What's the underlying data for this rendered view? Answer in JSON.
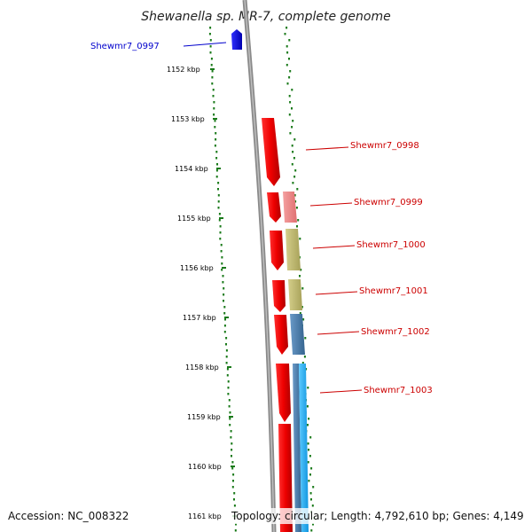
{
  "title": "Shewanella sp. MR-7, complete genome",
  "accession": "Accession: NC_008322",
  "topology": "Topology: circular; Length: 4,792,610 bp; Genes: 4,149",
  "ticks": [
    "1152 kbp",
    "1153 kbp",
    "1154 kbp",
    "1155 kbp",
    "1156 kbp",
    "1157 kbp",
    "1158 kbp",
    "1159 kbp",
    "1160 kbp",
    "1161 kbp"
  ],
  "genes": [
    {
      "label": "Shewmr7_0997",
      "color": "#0000ff"
    },
    {
      "label": "Shewmr7_0998",
      "color": "#ff0000"
    },
    {
      "label": "Shewmr7_0999",
      "color": "#ff0000"
    },
    {
      "label": "Shewmr7_1000",
      "color": "#ff0000"
    },
    {
      "label": "Shewmr7_1001",
      "color": "#ff0000"
    },
    {
      "label": "Shewmr7_1002",
      "color": "#ff0000"
    },
    {
      "label": "Shewmr7_1003",
      "color": "#ff0000"
    }
  ],
  "colors": {
    "gene_blue": "#0000ee",
    "gene_red": "#ee0000",
    "backbone": "#8a8a8a",
    "gc_skew_dots": "#1a7a1a",
    "cog_pink": "#f08080",
    "cog_khaki": "#bdb76b",
    "cog_steel": "#4682b4",
    "cog_sky": "#1eb4ff"
  }
}
